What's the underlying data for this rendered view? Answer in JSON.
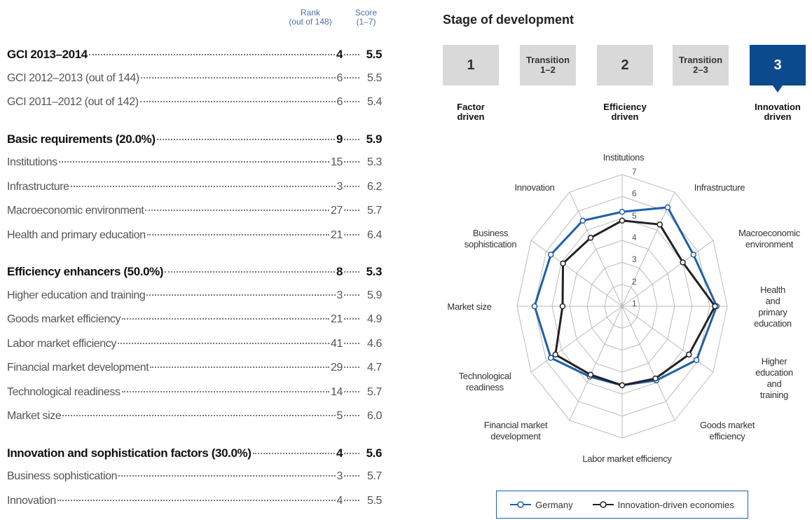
{
  "table": {
    "header": {
      "rank": "Rank\n(out of 148)",
      "score": "Score\n(1–7)"
    },
    "sections": [
      {
        "rows": [
          {
            "name": "GCI 2013–2014",
            "rank": "4",
            "score": "5.5"
          },
          {
            "name": "GCI 2012–2013 (out of 144)",
            "rank": "6",
            "score": "5.5"
          },
          {
            "name": "GCI 2011–2012 (out of 142)",
            "rank": "6",
            "score": "5.4"
          }
        ]
      },
      {
        "rows": [
          {
            "name": "Basic requirements (20.0%)",
            "rank": "9",
            "score": "5.9"
          },
          {
            "name": "Institutions",
            "rank": "15",
            "score": "5.3"
          },
          {
            "name": "Infrastructure",
            "rank": "3",
            "score": "6.2"
          },
          {
            "name": "Macroeconomic environment",
            "rank": "27",
            "score": "5.7"
          },
          {
            "name": "Health and primary education",
            "rank": "21",
            "score": "6.4"
          }
        ]
      },
      {
        "rows": [
          {
            "name": "Efficiency enhancers (50.0%)",
            "rank": "8",
            "score": "5.3"
          },
          {
            "name": "Higher education and training",
            "rank": "3",
            "score": "5.9"
          },
          {
            "name": "Goods market efficiency",
            "rank": "21",
            "score": "4.9"
          },
          {
            "name": "Labor market efficiency",
            "rank": "41",
            "score": "4.6"
          },
          {
            "name": "Financial market development",
            "rank": "29",
            "score": "4.7"
          },
          {
            "name": "Technological readiness",
            "rank": "14",
            "score": "5.7"
          },
          {
            "name": "Market size",
            "rank": "5",
            "score": "6.0"
          }
        ]
      },
      {
        "rows": [
          {
            "name": "Innovation and sophistication factors (30.0%)",
            "rank": "4",
            "score": "5.6"
          },
          {
            "name": "Business sophistication",
            "rank": "3",
            "score": "5.7"
          },
          {
            "name": "Innovation",
            "rank": "4",
            "score": "5.5"
          }
        ]
      }
    ]
  },
  "stage": {
    "title": "Stage of development",
    "boxes": [
      "1",
      "Transition\n1–2",
      "2",
      "Transition\n2–3",
      "3"
    ],
    "current": 4,
    "labels": [
      {
        "box": 0,
        "text": "Factor\ndriven"
      },
      {
        "box": 2,
        "text": "Efficiency\ndriven"
      },
      {
        "box": 4,
        "text": "Innovation\ndriven"
      }
    ]
  },
  "chart_data": {
    "type": "radar",
    "categories": [
      "Institutions",
      "Infrastructure",
      "Macroeconomic\nenvironment",
      "Health and\nprimary\neducation",
      "Higher education\nand training",
      "Goods market\nefficiency",
      "Labor market efficiency",
      "Financial market\ndevelopment",
      "Technological\nreadiness",
      "Market size",
      "Business\nsophistication",
      "Innovation"
    ],
    "series": [
      {
        "name": "Germany",
        "color": "#1f5fa8",
        "values": [
          5.3,
          6.2,
          5.7,
          6.4,
          5.9,
          4.9,
          4.6,
          4.7,
          5.7,
          6.0,
          5.7,
          5.5
        ]
      },
      {
        "name": "Innovation-driven economies",
        "color": "#222222",
        "values": [
          4.9,
          5.3,
          5.0,
          6.3,
          5.4,
          4.8,
          4.6,
          4.6,
          5.4,
          4.4,
          4.9,
          4.6
        ]
      }
    ],
    "ylim": [
      1,
      7
    ],
    "yticks": [
      1,
      2,
      3,
      4,
      5,
      6,
      7
    ],
    "grid": true,
    "legend": "bottom"
  }
}
